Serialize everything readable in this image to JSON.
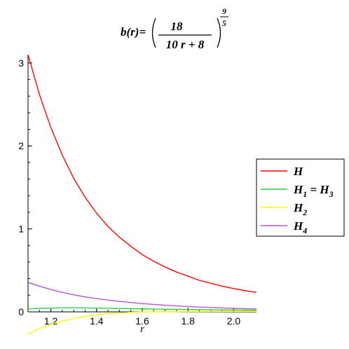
{
  "chart_data": {
    "type": "line",
    "title_parts": {
      "lhs": "b(r)=",
      "numerator": "18",
      "denominator": "10 r + 8",
      "exp_numerator": "9",
      "exp_denominator": "5"
    },
    "xlabel": "r",
    "ylabel": "",
    "xlim": [
      1.1,
      2.1
    ],
    "ylim": [
      0,
      3.1
    ],
    "xticks": [
      1.2,
      1.4,
      1.6,
      1.8,
      2.0
    ],
    "xtick_labels": [
      "1.2",
      "1.4",
      "1.6",
      "1.8",
      "2.0"
    ],
    "yticks": [
      0,
      1,
      2,
      3
    ],
    "ytick_labels": [
      "0",
      "1",
      "2",
      "3"
    ],
    "grid": false,
    "legend_position": "right",
    "series": [
      {
        "name": "H",
        "legend": {
          "main": "H",
          "sub": ""
        },
        "color": "#ff0000",
        "x": [
          1.1,
          1.15,
          1.2,
          1.25,
          1.3,
          1.35,
          1.4,
          1.45,
          1.5,
          1.55,
          1.6,
          1.65,
          1.7,
          1.75,
          1.8,
          1.85,
          1.9,
          1.95,
          2.0,
          2.05,
          2.1
        ],
        "y": [
          3.1,
          2.62,
          2.22,
          1.89,
          1.61,
          1.38,
          1.19,
          1.03,
          0.9,
          0.79,
          0.69,
          0.61,
          0.54,
          0.48,
          0.43,
          0.38,
          0.345,
          0.31,
          0.28,
          0.255,
          0.235
        ]
      },
      {
        "name": "H1 = H3",
        "legend": {
          "main": "H",
          "sub": "1",
          "tail": " = H",
          "tail_sub": "3"
        },
        "color": "#2ecc40",
        "x": [
          1.1,
          1.15,
          1.2,
          1.25,
          1.3,
          1.35,
          1.4,
          1.45,
          1.5,
          1.6,
          1.7,
          1.8,
          1.9,
          2.0,
          2.1
        ],
        "y": [
          0.035,
          0.042,
          0.046,
          0.048,
          0.048,
          0.047,
          0.045,
          0.043,
          0.041,
          0.036,
          0.032,
          0.028,
          0.025,
          0.022,
          0.02
        ]
      },
      {
        "name": "H2",
        "legend": {
          "main": "H",
          "sub": "2"
        },
        "color": "#ffff00",
        "x": [
          1.1,
          1.15,
          1.2,
          1.25,
          1.3,
          1.35,
          1.4,
          1.45,
          1.5,
          1.55,
          1.6,
          1.65,
          1.7,
          1.8,
          1.9,
          2.0,
          2.1
        ],
        "y": [
          -0.27,
          -0.2,
          -0.15,
          -0.11,
          -0.08,
          -0.055,
          -0.037,
          -0.023,
          -0.013,
          -0.006,
          -0.002,
          0.0,
          0.002,
          0.004,
          0.005,
          0.006,
          0.006
        ]
      },
      {
        "name": "H4",
        "legend": {
          "main": "H",
          "sub": "4"
        },
        "color": "#b854d4",
        "x": [
          1.1,
          1.15,
          1.2,
          1.25,
          1.3,
          1.35,
          1.4,
          1.45,
          1.5,
          1.6,
          1.7,
          1.8,
          1.9,
          2.0,
          2.1
        ],
        "y": [
          0.355,
          0.31,
          0.27,
          0.235,
          0.205,
          0.18,
          0.16,
          0.142,
          0.126,
          0.1,
          0.08,
          0.064,
          0.052,
          0.042,
          0.034
        ]
      }
    ]
  }
}
